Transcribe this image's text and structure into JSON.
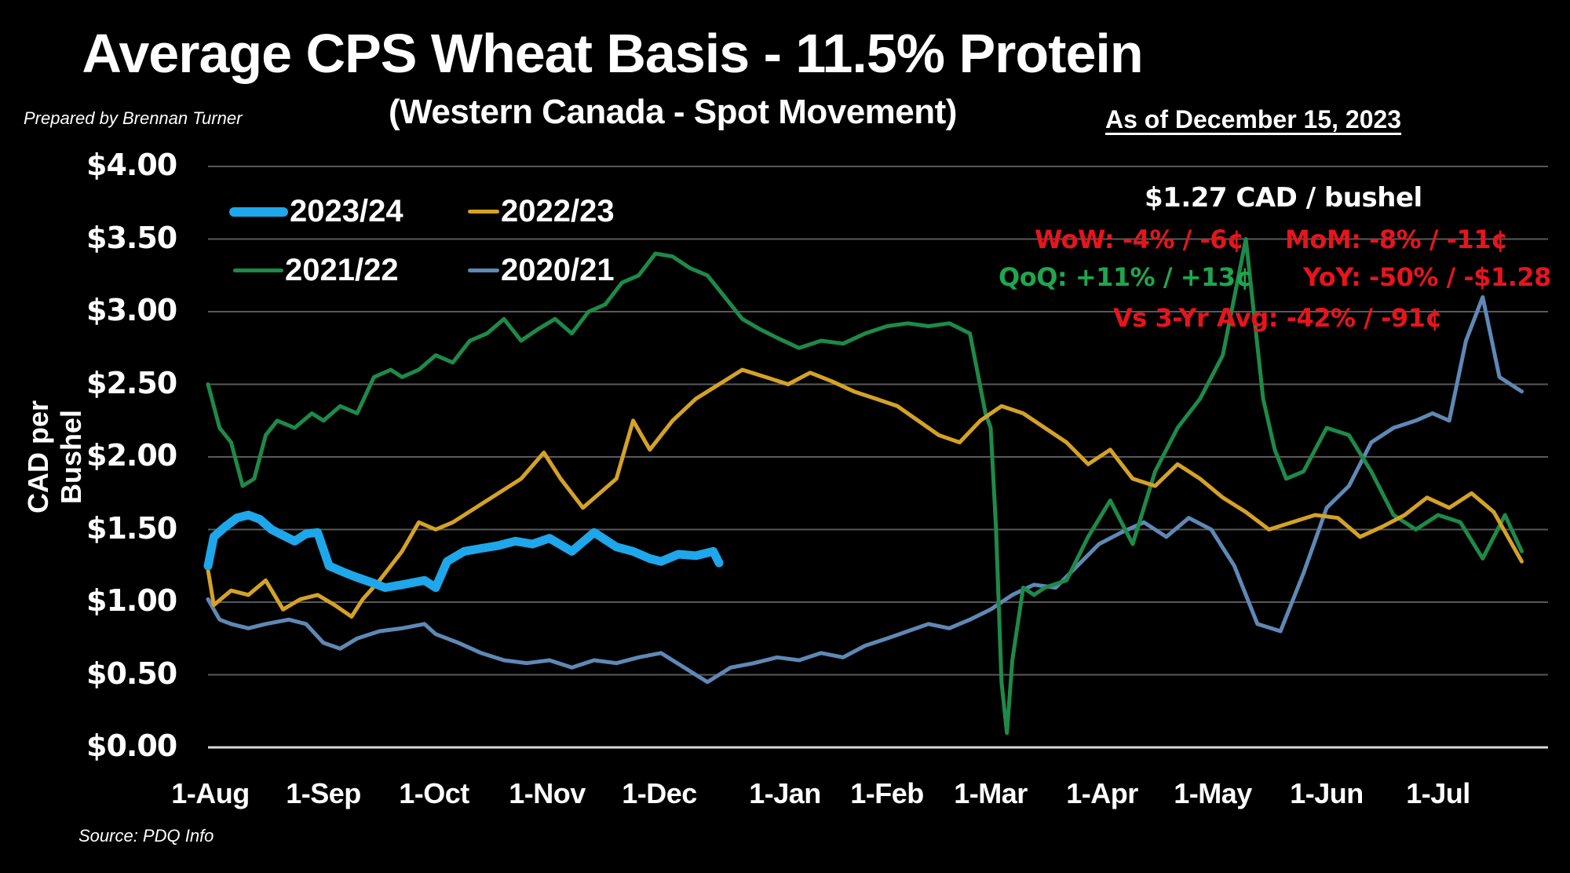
{
  "header": {
    "title": "Average CPS Wheat Basis - 11.5% Protein",
    "subtitle": "(Western Canada - Spot Movement)",
    "as_of": "As of December 15, 2023",
    "prepared_by": "Prepared by Brennan Turner",
    "source": "Source: PDQ Info"
  },
  "stats": {
    "headline": "$1.27 CAD / bushel",
    "wow": "WoW: -4% / -6¢",
    "mom": "MoM: -8% / -11¢",
    "qoq": "QoQ: +11% / +13¢",
    "yoy": "YoY: -50% / -$1.28",
    "vs3yr": "Vs 3-Yr Avg: -42% / -91¢",
    "colors": {
      "negative": "#e8141c",
      "positive": "#1fa64e",
      "headline": "#ffffff"
    }
  },
  "legend": [
    {
      "label": "2023/24",
      "color": "#1ea7ea",
      "width": 10
    },
    {
      "label": "2022/23",
      "color": "#d4a227",
      "width": 5
    },
    {
      "label": "2021/22",
      "color": "#1e8a48",
      "width": 5
    },
    {
      "label": "2020/21",
      "color": "#5f88b5",
      "width": 5
    }
  ],
  "chart_data": {
    "type": "line",
    "title": "Average CPS Wheat Basis - 11.5% Protein",
    "subtitle": "(Western Canada - Spot Movement)",
    "xlabel": "",
    "ylabel": "CAD per Bushel",
    "ylim": [
      0,
      4
    ],
    "yticks": [
      "$4.00",
      "$3.50",
      "$3.00",
      "$2.50",
      "$2.00",
      "$1.50",
      "$1.00",
      "$0.50",
      "$0.00"
    ],
    "xticks": [
      "1-Aug",
      "1-Sep",
      "1-Oct",
      "1-Nov",
      "1-Dec",
      "1-Jan",
      "1-Feb",
      "1-Mar",
      "1-Apr",
      "1-May",
      "1-Jun",
      "1-Jul"
    ],
    "grid": true,
    "legend_position": "upper-left",
    "x_unit": "months since 1-Aug (0 = 1-Aug, 11 = 1-Jul)",
    "series": [
      {
        "name": "2023/24",
        "color": "#1ea7ea",
        "x": [
          0,
          0.05,
          0.15,
          0.25,
          0.35,
          0.45,
          0.55,
          0.65,
          0.75,
          0.85,
          0.95,
          1.05,
          1.2,
          1.3,
          1.45,
          1.55,
          1.7,
          1.9,
          2.0,
          2.1,
          2.25,
          2.4,
          2.55,
          2.7,
          2.85,
          3.0,
          3.2,
          3.4,
          3.6,
          3.75,
          3.9,
          4.0,
          4.15,
          4.3,
          4.45,
          4.5
        ],
        "values": [
          1.25,
          1.45,
          1.52,
          1.58,
          1.6,
          1.57,
          1.5,
          1.46,
          1.42,
          1.47,
          1.48,
          1.25,
          1.2,
          1.17,
          1.13,
          1.1,
          1.12,
          1.15,
          1.1,
          1.28,
          1.35,
          1.37,
          1.39,
          1.42,
          1.4,
          1.44,
          1.35,
          1.48,
          1.38,
          1.35,
          1.3,
          1.28,
          1.33,
          1.32,
          1.35,
          1.27
        ]
      },
      {
        "name": "2022/23",
        "color": "#d4a227",
        "x": [
          0,
          0.05,
          0.2,
          0.35,
          0.5,
          0.65,
          0.8,
          0.95,
          1.1,
          1.25,
          1.35,
          1.5,
          1.7,
          1.85,
          2.0,
          2.15,
          2.35,
          2.55,
          2.75,
          2.95,
          3.1,
          3.3,
          3.45,
          3.6,
          3.75,
          3.9,
          4.1,
          4.3,
          4.5,
          4.7,
          4.9,
          5.1,
          5.3,
          5.5,
          5.7,
          5.9,
          6.1,
          6.3,
          6.5,
          6.7,
          6.9,
          7.1,
          7.3,
          7.5,
          7.7,
          7.9,
          8.1,
          8.3,
          8.5,
          8.7,
          8.9,
          9.1,
          9.3,
          9.5,
          9.7,
          9.9,
          10.1,
          10.3,
          10.5,
          10.7,
          10.9,
          11.1,
          11.3,
          11.5,
          11.75
        ],
        "values": [
          1.22,
          0.98,
          1.08,
          1.05,
          1.15,
          0.95,
          1.02,
          1.05,
          0.98,
          0.9,
          1.02,
          1.15,
          1.35,
          1.55,
          1.5,
          1.55,
          1.65,
          1.75,
          1.85,
          2.03,
          1.85,
          1.65,
          1.75,
          1.85,
          2.25,
          2.05,
          2.25,
          2.4,
          2.5,
          2.6,
          2.55,
          2.5,
          2.58,
          2.52,
          2.45,
          2.4,
          2.35,
          2.25,
          2.15,
          2.1,
          2.25,
          2.35,
          2.3,
          2.2,
          2.1,
          1.95,
          2.05,
          1.85,
          1.8,
          1.95,
          1.85,
          1.72,
          1.62,
          1.5,
          1.55,
          1.6,
          1.58,
          1.45,
          1.52,
          1.6,
          1.72,
          1.65,
          1.75,
          1.62,
          1.28
        ]
      },
      {
        "name": "2021/22",
        "color": "#1e8a48",
        "x": [
          0,
          0.1,
          0.2,
          0.3,
          0.4,
          0.5,
          0.6,
          0.75,
          0.9,
          1.0,
          1.15,
          1.3,
          1.45,
          1.6,
          1.7,
          1.85,
          2.0,
          2.15,
          2.3,
          2.45,
          2.6,
          2.75,
          2.9,
          3.05,
          3.2,
          3.35,
          3.5,
          3.65,
          3.8,
          3.95,
          4.1,
          4.25,
          4.4,
          4.55,
          4.7,
          4.85,
          5.0,
          5.2,
          5.4,
          5.6,
          5.8,
          6.0,
          6.2,
          6.4,
          6.6,
          6.8,
          6.95,
          7.0,
          7.05,
          7.1,
          7.15,
          7.2,
          7.3,
          7.4,
          7.5,
          7.7,
          7.9,
          8.1,
          8.3,
          8.5,
          8.7,
          8.9,
          9.1,
          9.3,
          9.45,
          9.55,
          9.65,
          9.8,
          10.0,
          10.2,
          10.4,
          10.6,
          10.8,
          11.0,
          11.2,
          11.4,
          11.6,
          11.75
        ],
        "values": [
          2.5,
          2.2,
          2.1,
          1.8,
          1.85,
          2.15,
          2.25,
          2.2,
          2.3,
          2.25,
          2.35,
          2.3,
          2.55,
          2.6,
          2.55,
          2.6,
          2.7,
          2.65,
          2.8,
          2.85,
          2.95,
          2.8,
          2.88,
          2.95,
          2.85,
          3.0,
          3.05,
          3.2,
          3.25,
          3.4,
          3.38,
          3.3,
          3.25,
          3.1,
          2.95,
          2.88,
          2.82,
          2.75,
          2.8,
          2.78,
          2.85,
          2.9,
          2.92,
          2.9,
          2.92,
          2.85,
          2.3,
          2.2,
          1.5,
          0.45,
          0.1,
          0.6,
          1.1,
          1.05,
          1.1,
          1.15,
          1.45,
          1.7,
          1.4,
          1.9,
          2.2,
          2.4,
          2.7,
          3.5,
          2.4,
          2.05,
          1.85,
          1.9,
          2.2,
          2.15,
          1.9,
          1.6,
          1.5,
          1.6,
          1.55,
          1.3,
          1.6,
          1.35
        ]
      },
      {
        "name": "2020/21",
        "color": "#5f88b5",
        "x": [
          0,
          0.1,
          0.2,
          0.35,
          0.5,
          0.7,
          0.85,
          1.0,
          1.15,
          1.3,
          1.5,
          1.7,
          1.9,
          2.0,
          2.2,
          2.4,
          2.6,
          2.8,
          3.0,
          3.2,
          3.4,
          3.6,
          3.8,
          4.0,
          4.2,
          4.4,
          4.6,
          4.8,
          5.0,
          5.2,
          5.4,
          5.6,
          5.8,
          6.0,
          6.2,
          6.4,
          6.6,
          6.8,
          7.0,
          7.2,
          7.4,
          7.6,
          7.8,
          8.0,
          8.2,
          8.4,
          8.6,
          8.8,
          9.0,
          9.2,
          9.4,
          9.6,
          9.8,
          10.0,
          10.2,
          10.4,
          10.6,
          10.8,
          10.95,
          11.1,
          11.25,
          11.4,
          11.55,
          11.75
        ],
        "values": [
          1.02,
          0.88,
          0.85,
          0.82,
          0.85,
          0.88,
          0.85,
          0.72,
          0.68,
          0.75,
          0.8,
          0.82,
          0.85,
          0.78,
          0.72,
          0.65,
          0.6,
          0.58,
          0.6,
          0.55,
          0.6,
          0.58,
          0.62,
          0.65,
          0.55,
          0.45,
          0.55,
          0.58,
          0.62,
          0.6,
          0.65,
          0.62,
          0.7,
          0.75,
          0.8,
          0.85,
          0.82,
          0.88,
          0.95,
          1.05,
          1.12,
          1.1,
          1.25,
          1.4,
          1.48,
          1.55,
          1.45,
          1.58,
          1.5,
          1.25,
          0.85,
          0.8,
          1.2,
          1.65,
          1.8,
          2.1,
          2.2,
          2.25,
          2.3,
          2.25,
          2.8,
          3.1,
          2.55,
          2.45
        ]
      }
    ]
  }
}
